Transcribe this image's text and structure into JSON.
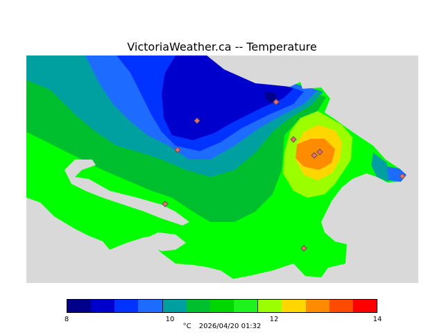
{
  "title": "VictoriaWeather.ca -- Temperature",
  "legend": {
    "unit": "°C",
    "timestamp": "2026/04/20 01:32",
    "ticks": [
      "8",
      "10",
      "12",
      "14"
    ],
    "colors": [
      "#00008b",
      "#0000cd",
      "#0033ff",
      "#1e6cff",
      "#00a0a0",
      "#00bf2c",
      "#00d700",
      "#1ef31e",
      "#9bff00",
      "#ffd600",
      "#ff8c00",
      "#ff4b00",
      "#ff0000"
    ],
    "range": [
      8,
      14
    ]
  },
  "map": {
    "background_color": "#d9d9d9",
    "station_count": 9,
    "stations_marker": "diamond-icon"
  }
}
